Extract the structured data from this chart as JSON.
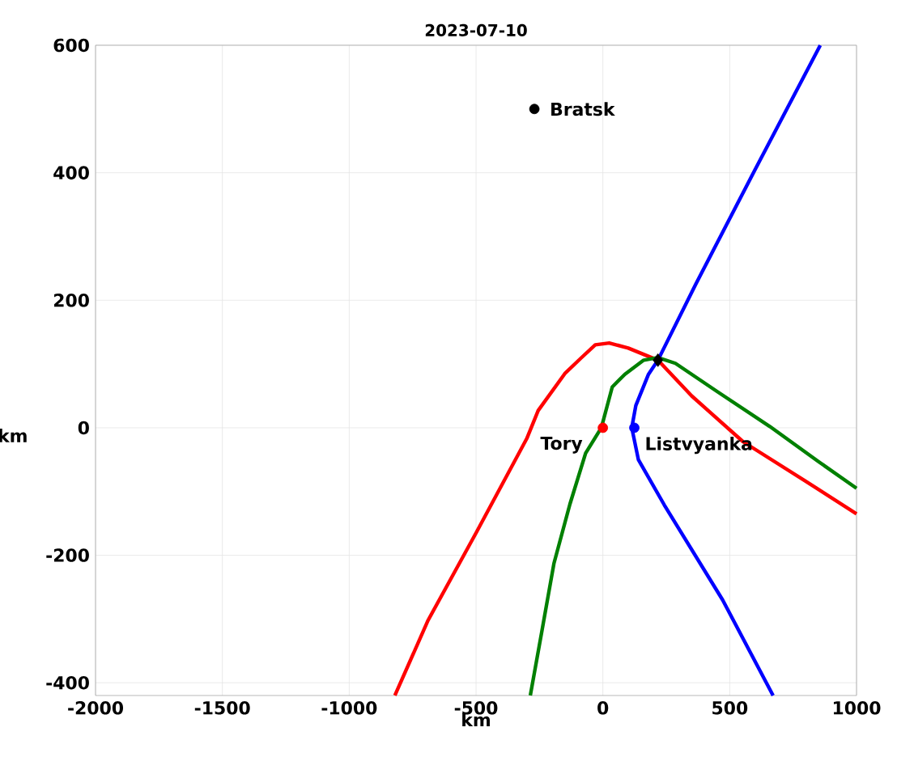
{
  "chart_data": {
    "type": "line",
    "title": "2023-07-10",
    "xlabel": "km",
    "ylabel": "km",
    "xlim": [
      -2000,
      1000
    ],
    "ylim": [
      -420,
      600
    ],
    "xticks": [
      -2000,
      -1500,
      -1000,
      -500,
      0,
      500,
      1000
    ],
    "yticks": [
      -400,
      -200,
      0,
      200,
      400,
      600
    ],
    "grid": true,
    "marker": "none",
    "line_style": "solid",
    "series": [
      {
        "color": "#ff0000",
        "x": [
          -820,
          -689,
          -500,
          -300,
          -255,
          -150,
          -87,
          -30,
          25,
          100,
          217,
          350,
          553,
          800,
          1000
        ],
        "values": [
          -420,
          -302,
          -165,
          -17,
          27,
          85,
          109,
          130,
          133,
          125,
          106,
          50,
          -22,
          -84,
          -135
        ]
      },
      {
        "color": "#008000",
        "x": [
          -286,
          -240,
          -193,
          -130,
          -68,
          -6,
          37,
          87,
          161,
          217,
          286,
          450,
          658,
          850,
          1000
        ],
        "values": [
          -420,
          -318,
          -213,
          -120,
          -40,
          0,
          64,
          84,
          106,
          110,
          101,
          57,
          2,
          -53,
          -95
        ]
      },
      {
        "color": "#0000ff",
        "x": [
          671,
          472,
          242,
          140,
          114,
          130,
          180,
          217,
          366,
          600,
          857
        ],
        "values": [
          -420,
          -270,
          -121,
          -50,
          0,
          35,
          84,
          106,
          225,
          405,
          600
        ]
      },
      {
        "type": "scatter",
        "name": "Tory",
        "color": "#ff0000",
        "marker": "circle",
        "x": [
          0
        ],
        "values": [
          0
        ]
      },
      {
        "type": "scatter",
        "name": "Listvyanka",
        "color": "#0000ff",
        "marker": "circle",
        "x": [
          124
        ],
        "values": [
          0
        ]
      },
      {
        "type": "scatter",
        "name": "Bratsk",
        "color": "#000000",
        "marker": "circle",
        "x": [
          -270
        ],
        "values": [
          500
        ]
      },
      {
        "type": "scatter",
        "color": "#000000",
        "marker": "diamond",
        "x": [
          217
        ],
        "values": [
          106
        ]
      }
    ]
  }
}
